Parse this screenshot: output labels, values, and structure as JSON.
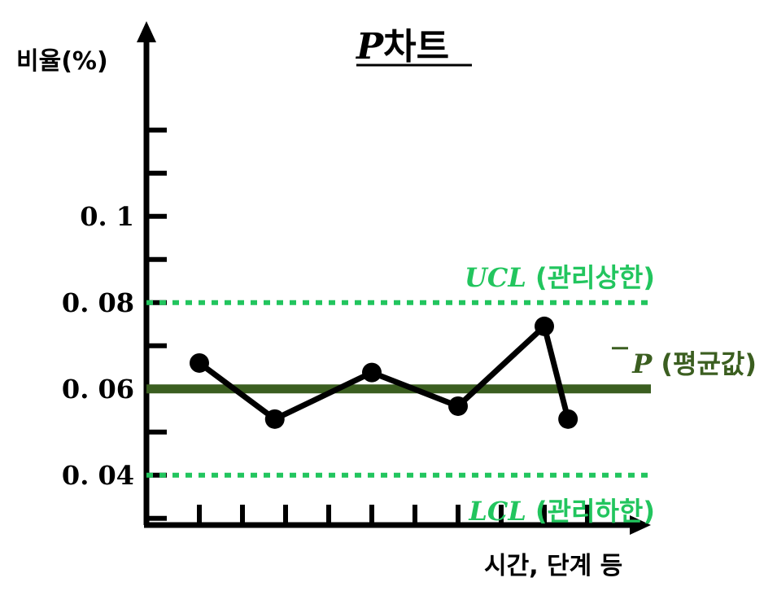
{
  "chart_data": {
    "type": "line",
    "title": "P차트",
    "title_variable": "P",
    "title_suffix": "차트",
    "ylabel": "비율(%)",
    "xlabel": "시간, 단계 등",
    "ylim": [
      0.0275,
      0.1275
    ],
    "y_ticks": [
      {
        "value": 0.04,
        "label": "0. 04"
      },
      {
        "value": 0.06,
        "label": "0. 06"
      },
      {
        "value": 0.08,
        "label": "0. 08"
      },
      {
        "value": 0.1,
        "label": "0. 1"
      }
    ],
    "y_minor_ticks": [
      0.03,
      0.04,
      0.05,
      0.06,
      0.07,
      0.08,
      0.09,
      0.1,
      0.11,
      0.12
    ],
    "x_tick_count": 10,
    "series": [
      {
        "x": [
          1,
          2.75,
          5,
          7,
          9,
          9.55
        ],
        "values": [
          0.066,
          0.053,
          0.0638,
          0.056,
          0.0745,
          0.053
        ]
      }
    ],
    "reference_lines": [
      {
        "key": "ucl",
        "value": 0.08,
        "style": "dotted",
        "color": "#22c55e",
        "var": "UCL",
        "text": "(관리상한)"
      },
      {
        "key": "mean",
        "value": 0.06,
        "style": "solid",
        "color": "#3b5e20",
        "var": "P",
        "overline": true,
        "text": "(평균값)"
      },
      {
        "key": "lcl",
        "value": 0.04,
        "style": "dotted",
        "color": "#22c55e",
        "var": "LCL",
        "text": "(관리하한)"
      }
    ],
    "grid": false,
    "colors": {
      "line": "#000000",
      "ucl": "#22c55e",
      "lcl": "#22c55e",
      "mean": "#3b5e20"
    }
  }
}
